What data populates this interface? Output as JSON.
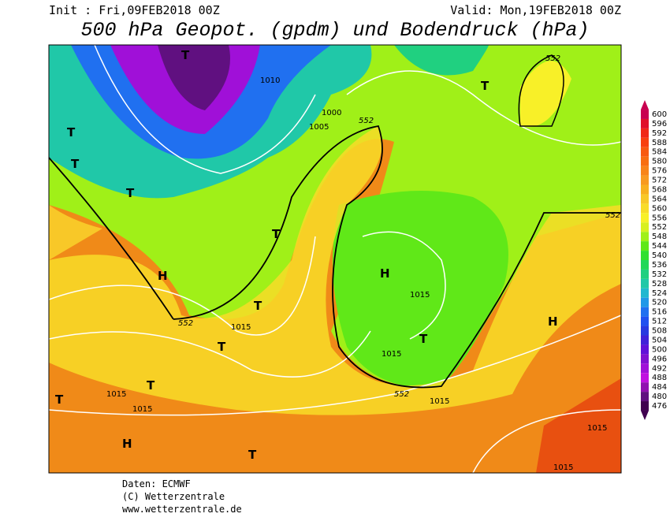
{
  "header": {
    "init": "Init : Fri,09FEB2018 00Z",
    "valid": "Valid: Mon,19FEB2018 00Z",
    "title": "500 hPa Geopot. (gpdm) und Bodendruck (hPa)"
  },
  "footer": {
    "source": "Daten: ECMWF",
    "copyright": "(C) Wetterzentrale",
    "url": "www.wetterzentrale.de"
  },
  "map": {
    "labels": [
      "H",
      "H",
      "H",
      "H",
      "T",
      "T",
      "T",
      "T",
      "T",
      "T",
      "T",
      "T",
      "T",
      "T",
      "T",
      "T",
      "1015",
      "1015",
      "1015",
      "1015",
      "1015",
      "1015",
      "1015",
      "1015",
      "1010",
      "1000",
      "1005",
      "552",
      "552",
      "552",
      "552",
      "552"
    ]
  },
  "colorbar": {
    "values": [
      600,
      596,
      592,
      588,
      584,
      580,
      576,
      572,
      568,
      564,
      560,
      556,
      552,
      548,
      544,
      540,
      536,
      532,
      528,
      524,
      520,
      516,
      512,
      508,
      504,
      500,
      496,
      492,
      488,
      484,
      480,
      476
    ],
    "colors": [
      "#c80050",
      "#e0102a",
      "#f02818",
      "#f84010",
      "#f85a10",
      "#f86e10",
      "#f88418",
      "#f89a20",
      "#f8b020",
      "#f8c828",
      "#f8dc28",
      "#f8f028",
      "#d8f020",
      "#a0f018",
      "#60e818",
      "#30e030",
      "#20d858",
      "#20d080",
      "#20c8a8",
      "#20b8d0",
      "#2098e8",
      "#2070f0",
      "#2050f0",
      "#2838e0",
      "#4020d8",
      "#6010d8",
      "#8010d0",
      "#a010d8",
      "#c010e0",
      "#9010b0",
      "#601080",
      "#400050"
    ]
  }
}
